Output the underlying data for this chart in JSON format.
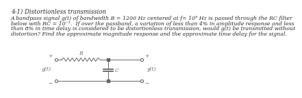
{
  "title": "4-1) Distortionless transmission",
  "line1": "A bandpass signal g(t) of bandwidth B = 1200 Hz centered at f= 10⁴ Hz is passed through the RC filter",
  "line2": "below with RC = 10⁻¹.  If over the passband, a variation of less than 4% in amplitude response and less",
  "line3": "than 8% in time delay is considered to be distortionless transmission, would g(t) be transmitted without",
  "line4": "distortion? Find the approximate magnitude response and the approximate time delay for the signal.",
  "bg_color": "#ffffff",
  "text_color": "#2a2a2a",
  "title_fontsize": 6.2,
  "body_fontsize": 5.7,
  "circuit": {
    "g_label": "g(t)",
    "y_label": "y(t)",
    "R_label": "R",
    "C_label": "C"
  }
}
